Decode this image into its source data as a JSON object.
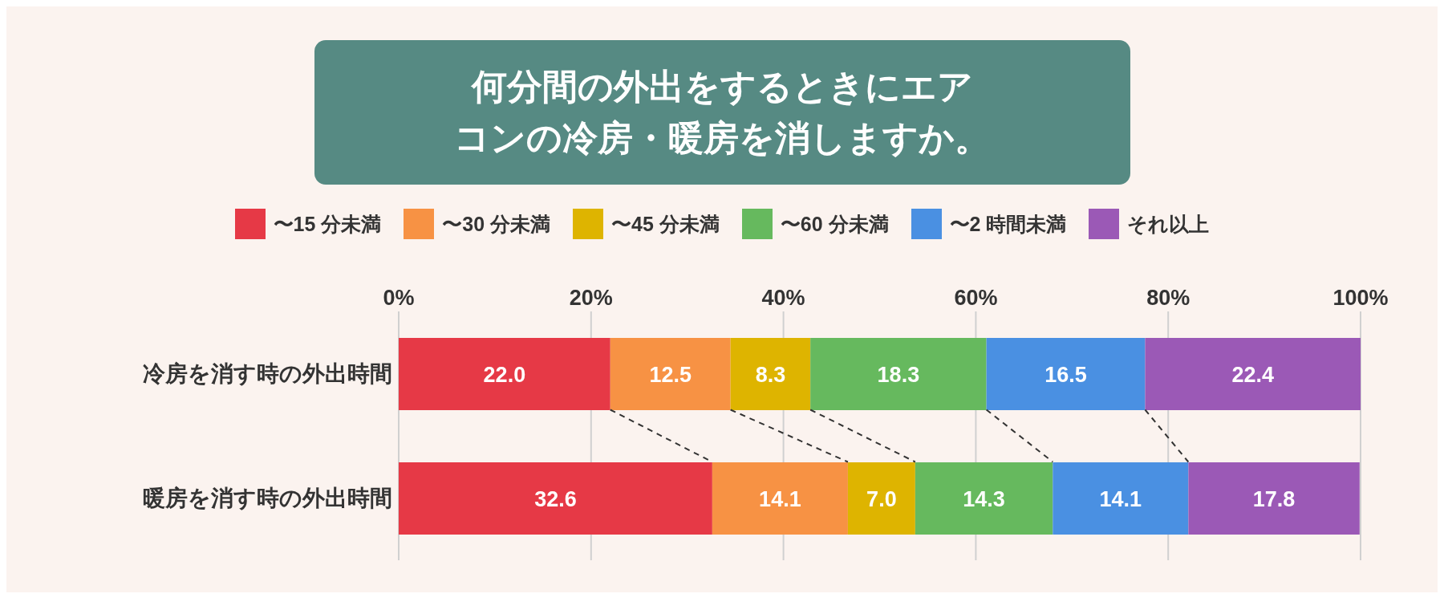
{
  "chart_data": {
    "type": "bar",
    "orientation": "horizontal",
    "stacked": true,
    "title": "何分間の外出をするときにエアコンの冷房・暖房を消しますか。",
    "categories": [
      "冷房を消す時の外出時間",
      "暖房を消す時の外出時間"
    ],
    "series": [
      {
        "name": "〜15 分未満",
        "color": "#e63946",
        "values": [
          22.0,
          32.6
        ],
        "value_labels": [
          "22.0",
          "32.6"
        ]
      },
      {
        "name": "〜30 分未満",
        "color": "#f79244",
        "values": [
          12.5,
          14.1
        ],
        "value_labels": [
          "12.5",
          "14.1"
        ]
      },
      {
        "name": "〜45 分未満",
        "color": "#deb400",
        "values": [
          8.3,
          7.0
        ],
        "value_labels": [
          "8.3",
          "7.0"
        ]
      },
      {
        "name": "〜60 分未満",
        "color": "#66b95e",
        "values": [
          18.3,
          14.3
        ],
        "value_labels": [
          "18.3",
          "14.3"
        ]
      },
      {
        "name": "〜2 時間未満",
        "color": "#4a90e2",
        "values": [
          16.5,
          14.1
        ],
        "value_labels": [
          "16.5",
          "14.1"
        ]
      },
      {
        "name": "それ以上",
        "color": "#9b59b6",
        "values": [
          22.4,
          17.8
        ],
        "value_labels": [
          "22.4",
          "17.8"
        ]
      }
    ],
    "xlim": [
      0,
      100
    ],
    "xticks": [
      {
        "value": 0,
        "label": "0%"
      },
      {
        "value": 20,
        "label": "20%"
      },
      {
        "value": 40,
        "label": "40%"
      },
      {
        "value": 60,
        "label": "60%"
      },
      {
        "value": 80,
        "label": "80%"
      },
      {
        "value": 100,
        "label": "100%"
      }
    ],
    "grid": "x",
    "legend": "top"
  }
}
